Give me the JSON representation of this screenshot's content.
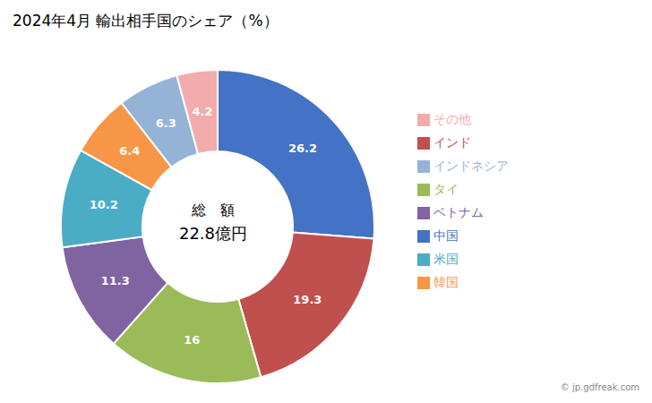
{
  "chart_data": {
    "type": "pie",
    "title": "2024年4月 輸出相手国のシェア（%）",
    "categories": [
      "中国",
      "インド",
      "タイ",
      "ベトナム",
      "米国",
      "韓国",
      "インドネシア",
      "その他"
    ],
    "values": [
      26.2,
      19.3,
      16.0,
      11.3,
      10.2,
      6.4,
      6.3,
      4.2
    ],
    "colors": [
      "#4472C4",
      "#C0504D",
      "#9BBB59",
      "#8064A2",
      "#4BACC6",
      "#F79646",
      "#95B3D7",
      "#F2ACAC"
    ],
    "data_labels": true,
    "legend": "right",
    "annotations": [
      "総　額",
      "22.8億円"
    ],
    "watermark": "© jp.gdfreak.com"
  }
}
